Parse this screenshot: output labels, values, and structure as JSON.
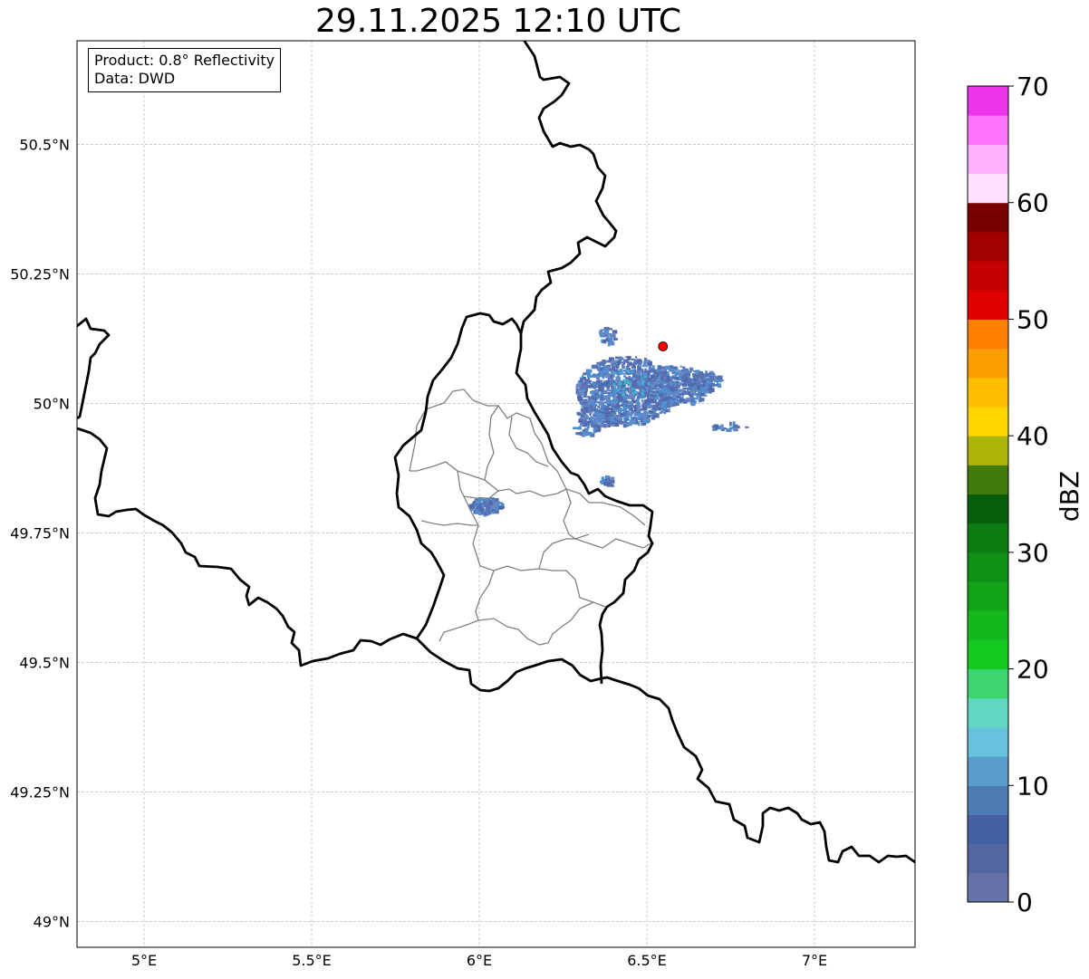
{
  "title": "29.11.2025 12:10 UTC",
  "info": {
    "product": "Product: 0.8° Reflectivity",
    "source": "Data: DWD"
  },
  "axes": {
    "lon_ticks": [
      {
        "value": 5.0,
        "label": "5°E"
      },
      {
        "value": 5.5,
        "label": "5.5°E"
      },
      {
        "value": 6.0,
        "label": "6°E"
      },
      {
        "value": 6.5,
        "label": "6.5°E"
      },
      {
        "value": 7.0,
        "label": "7°E"
      }
    ],
    "lat_ticks": [
      {
        "value": 50.5,
        "label": "50.5°N"
      },
      {
        "value": 50.25,
        "label": "50.25°N"
      },
      {
        "value": 50.0,
        "label": "50°N"
      },
      {
        "value": 49.75,
        "label": "49.75°N"
      },
      {
        "value": 49.5,
        "label": "49.5°N"
      },
      {
        "value": 49.25,
        "label": "49.25°N"
      },
      {
        "value": 49.0,
        "label": "49°N"
      }
    ],
    "lon_range": [
      4.8,
      7.3
    ],
    "lat_range": [
      48.95,
      50.7
    ],
    "grid": true
  },
  "radar_site": {
    "lon": 6.548,
    "lat": 50.11,
    "color": "#ff0000"
  },
  "colorbar": {
    "title": "dBZ",
    "min": 0,
    "max": 70,
    "ticks": [
      {
        "value": 0,
        "label": "0"
      },
      {
        "value": 10,
        "label": "10"
      },
      {
        "value": 20,
        "label": "20"
      },
      {
        "value": 30,
        "label": "30"
      },
      {
        "value": 40,
        "label": "40"
      },
      {
        "value": 50,
        "label": "50"
      },
      {
        "value": 60,
        "label": "60"
      },
      {
        "value": 70,
        "label": "70"
      }
    ],
    "colors": [
      "#6573a8",
      "#5567a2",
      "#4561a2",
      "#4d7cb5",
      "#5a9dcb",
      "#66c2dd",
      "#61d7c3",
      "#3dd673",
      "#13c91d",
      "#13b91b",
      "#12a418",
      "#0f9115",
      "#0b7c12",
      "#075f0c",
      "#417b0b",
      "#adb50a",
      "#ffd700",
      "#ffbd00",
      "#ff9e00",
      "#ff7f00",
      "#e10000",
      "#c40000",
      "#a30000",
      "#7a0000",
      "#ffe1ff",
      "#ffb0ff",
      "#ff73ff",
      "#ee35ee"
    ]
  },
  "echo_colors": [
    "#5a72b5",
    "#4f69ad",
    "#6688c4",
    "#4d8fcf",
    "#3fb0c9"
  ]
}
